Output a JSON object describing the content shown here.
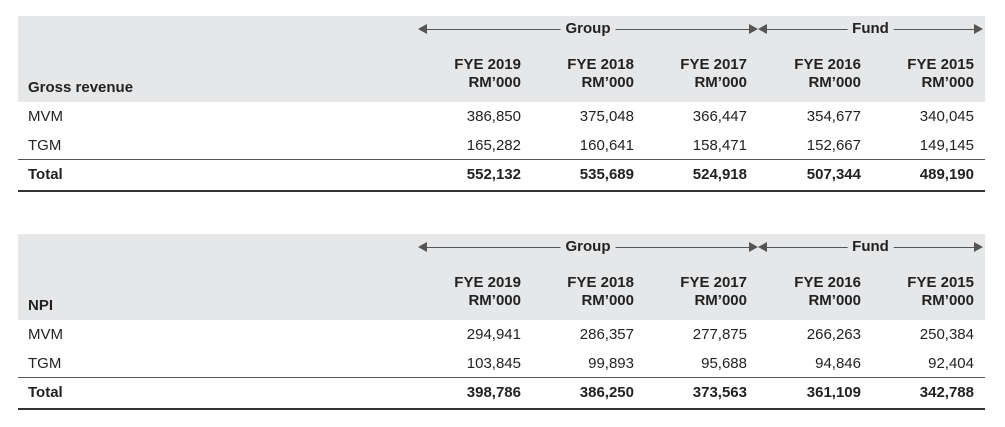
{
  "tables": [
    {
      "section_label": "Gross revenue",
      "groups": [
        "Group",
        "Fund"
      ],
      "columns": [
        {
          "year": "FYE 2019",
          "unit": "RM’000"
        },
        {
          "year": "FYE 2018",
          "unit": "RM’000"
        },
        {
          "year": "FYE 2017",
          "unit": "RM’000"
        },
        {
          "year": "FYE 2016",
          "unit": "RM’000"
        },
        {
          "year": "FYE 2015",
          "unit": "RM’000"
        }
      ],
      "rows": [
        {
          "label": "MVM",
          "values": [
            "386,850",
            "375,048",
            "366,447",
            "354,677",
            "340,045"
          ]
        },
        {
          "label": "TGM",
          "values": [
            "165,282",
            "160,641",
            "158,471",
            "152,667",
            "149,145"
          ]
        }
      ],
      "total": {
        "label": "Total",
        "values": [
          "552,132",
          "535,689",
          "524,918",
          "507,344",
          "489,190"
        ]
      }
    },
    {
      "section_label": "NPI",
      "groups": [
        "Group",
        "Fund"
      ],
      "columns": [
        {
          "year": "FYE 2019",
          "unit": "RM’000"
        },
        {
          "year": "FYE 2018",
          "unit": "RM’000"
        },
        {
          "year": "FYE 2017",
          "unit": "RM’000"
        },
        {
          "year": "FYE 2016",
          "unit": "RM’000"
        },
        {
          "year": "FYE 2015",
          "unit": "RM’000"
        }
      ],
      "rows": [
        {
          "label": "MVM",
          "values": [
            "294,941",
            "286,357",
            "277,875",
            "266,263",
            "250,384"
          ]
        },
        {
          "label": "TGM",
          "values": [
            "103,845",
            "99,893",
            "95,688",
            "94,846",
            "92,404"
          ]
        }
      ],
      "total": {
        "label": "Total",
        "values": [
          "398,786",
          "386,250",
          "373,563",
          "361,109",
          "342,788"
        ]
      }
    }
  ]
}
